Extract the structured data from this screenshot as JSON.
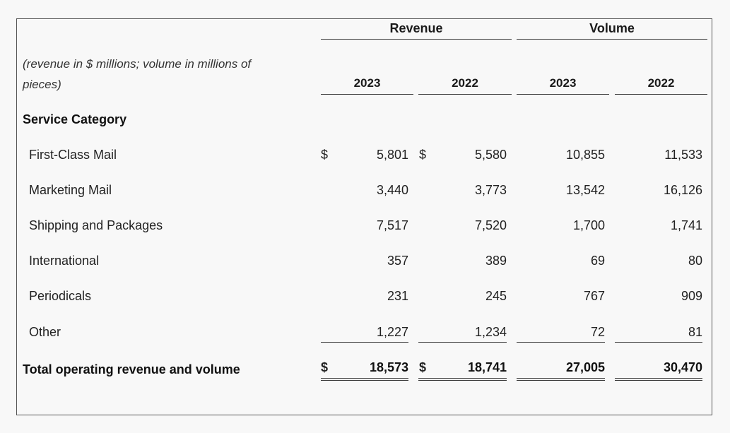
{
  "header": {
    "revenue_label": "Revenue",
    "volume_label": "Volume",
    "note": "(revenue in $ millions; volume in millions of pieces)",
    "years": [
      "2023",
      "2022",
      "2023",
      "2022"
    ]
  },
  "section_title": "Service Category",
  "currency_symbol": "$",
  "rows": [
    {
      "label": "First-Class Mail",
      "rev_2023": "5,801",
      "rev_2022": "5,580",
      "vol_2023": "10,855",
      "vol_2022": "11,533"
    },
    {
      "label": "Marketing Mail",
      "rev_2023": "3,440",
      "rev_2022": "3,773",
      "vol_2023": "13,542",
      "vol_2022": "16,126"
    },
    {
      "label": "Shipping and Packages",
      "rev_2023": "7,517",
      "rev_2022": "7,520",
      "vol_2023": "1,700",
      "vol_2022": "1,741"
    },
    {
      "label": "International",
      "rev_2023": "357",
      "rev_2022": "389",
      "vol_2023": "69",
      "vol_2022": "80"
    },
    {
      "label": "Periodicals",
      "rev_2023": "231",
      "rev_2022": "245",
      "vol_2023": "767",
      "vol_2022": "909"
    },
    {
      "label": "Other",
      "rev_2023": "1,227",
      "rev_2022": "1,234",
      "vol_2023": "72",
      "vol_2022": "81"
    }
  ],
  "total": {
    "label": "Total operating revenue and volume",
    "rev_2023": "18,573",
    "rev_2022": "18,741",
    "vol_2023": "27,005",
    "vol_2022": "30,470"
  }
}
